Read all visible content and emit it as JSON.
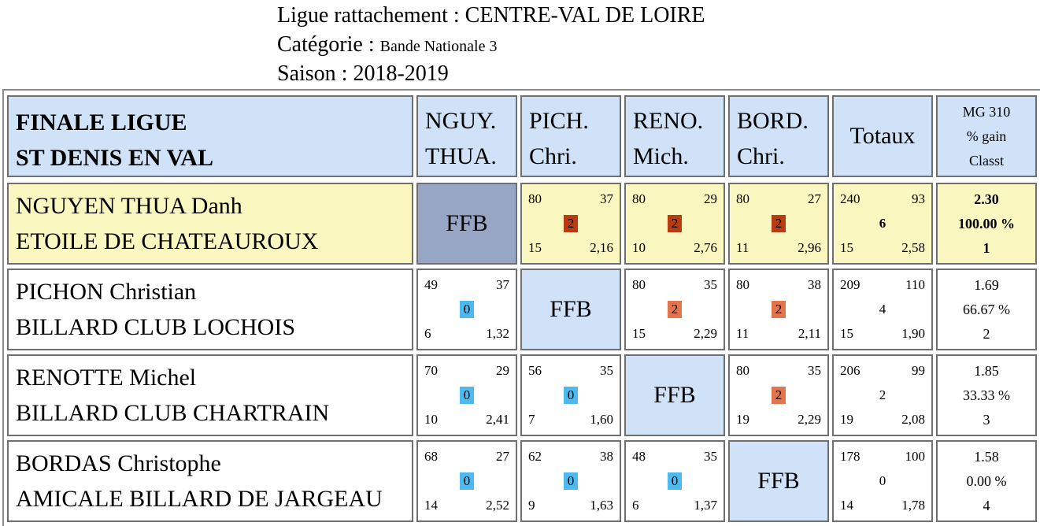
{
  "header": {
    "ligue_label": "Ligue rattachement : ",
    "ligue_value": "CENTRE-VAL DE LOIRE",
    "categorie_label": "Catégorie : ",
    "categorie_value": "Bande Nationale 3",
    "saison_label": "Saison : ",
    "saison_value": "2018-2019"
  },
  "table": {
    "title_line1": "FINALE LIGUE",
    "title_line2": "ST DENIS EN VAL",
    "player_headers": [
      {
        "line1": "NGUY.",
        "line2": "THUA."
      },
      {
        "line1": "PICH.",
        "line2": "Chri."
      },
      {
        "line1": "RENO.",
        "line2": "Mich."
      },
      {
        "line1": "BORD.",
        "line2": "Chri."
      }
    ],
    "totals_header": "Totaux",
    "mg_header": {
      "line1": "MG 310",
      "line2": "% gain",
      "line3": "Classt"
    },
    "ffb_label": "FFB",
    "colors": {
      "header_bg": "#cfe2f8",
      "winner_row_bg": "#fbf7c0",
      "ffb_self_bg": "#96a6c4",
      "win_badge": "#e3744b",
      "win_badge_winner": "#b83c12",
      "loss_badge": "#4db9ee"
    },
    "rows": [
      {
        "name": "NGUYEN THUA Danh",
        "club": "ETOILE DE CHATEAUROUX",
        "matches": [
          null,
          {
            "points": "80",
            "best": "37",
            "result": "2",
            "innings": "15",
            "avg": "2,16"
          },
          {
            "points": "80",
            "best": "29",
            "result": "2",
            "innings": "10",
            "avg": "2,76"
          },
          {
            "points": "80",
            "best": "27",
            "result": "2",
            "innings": "11",
            "avg": "2,96"
          }
        ],
        "totals": {
          "points": "240",
          "best": "93",
          "result": "6",
          "innings": "15",
          "avg": "2,58"
        },
        "mg": {
          "mg": "2.30",
          "gain": "100.00 %",
          "rank": "1"
        }
      },
      {
        "name": "PICHON Christian",
        "club": "BILLARD CLUB LOCHOIS",
        "matches": [
          {
            "points": "49",
            "best": "37",
            "result": "0",
            "innings": "6",
            "avg": "1,32"
          },
          null,
          {
            "points": "80",
            "best": "35",
            "result": "2",
            "innings": "15",
            "avg": "2,29"
          },
          {
            "points": "80",
            "best": "38",
            "result": "2",
            "innings": "11",
            "avg": "2,11"
          }
        ],
        "totals": {
          "points": "209",
          "best": "110",
          "result": "4",
          "innings": "15",
          "avg": "1,90"
        },
        "mg": {
          "mg": "1.69",
          "gain": "66.67 %",
          "rank": "2"
        }
      },
      {
        "name": "RENOTTE Michel",
        "club": "BILLARD CLUB CHARTRAIN",
        "matches": [
          {
            "points": "70",
            "best": "29",
            "result": "0",
            "innings": "10",
            "avg": "2,41"
          },
          {
            "points": "56",
            "best": "35",
            "result": "0",
            "innings": "7",
            "avg": "1,60"
          },
          null,
          {
            "points": "80",
            "best": "35",
            "result": "2",
            "innings": "19",
            "avg": "2,29"
          }
        ],
        "totals": {
          "points": "206",
          "best": "99",
          "result": "2",
          "innings": "19",
          "avg": "2,08"
        },
        "mg": {
          "mg": "1.85",
          "gain": "33.33 %",
          "rank": "3"
        }
      },
      {
        "name": "BORDAS Christophe",
        "club": "AMICALE BILLARD DE JARGEAU",
        "matches": [
          {
            "points": "68",
            "best": "27",
            "result": "0",
            "innings": "14",
            "avg": "2,52"
          },
          {
            "points": "62",
            "best": "38",
            "result": "0",
            "innings": "9",
            "avg": "1,63"
          },
          {
            "points": "48",
            "best": "35",
            "result": "0",
            "innings": "6",
            "avg": "1,37"
          },
          null
        ],
        "totals": {
          "points": "178",
          "best": "100",
          "result": "0",
          "innings": "14",
          "avg": "1,78"
        },
        "mg": {
          "mg": "1.58",
          "gain": "0.00 %",
          "rank": "4"
        }
      }
    ]
  }
}
